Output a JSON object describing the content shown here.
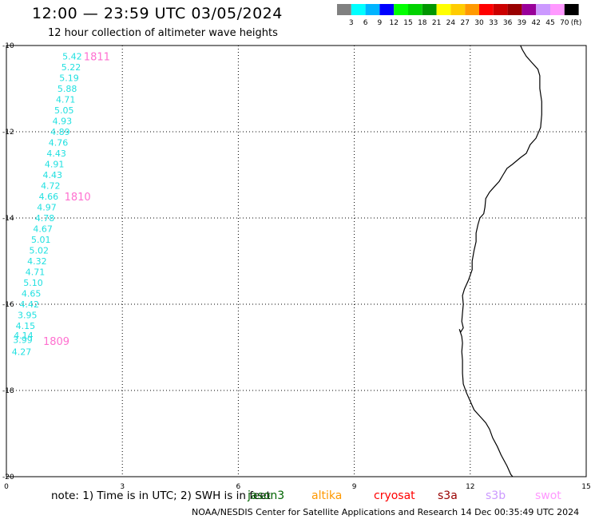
{
  "header": {
    "title": "12:00 — 23:59 UTC 03/05/2024",
    "subtitle": "12 hour collection of altimeter wave heights"
  },
  "legend": {
    "unit": "(ft)",
    "swatches": [
      {
        "label": "",
        "color": "#808080"
      },
      {
        "label": "3",
        "color": "#00ffff"
      },
      {
        "label": "6",
        "color": "#00b4ff"
      },
      {
        "label": "9",
        "color": "#0000ff"
      },
      {
        "label": "12",
        "color": "#00ff00"
      },
      {
        "label": "15",
        "color": "#00d200"
      },
      {
        "label": "18",
        "color": "#009600"
      },
      {
        "label": "21",
        "color": "#ffff00"
      },
      {
        "label": "24",
        "color": "#ffcc00"
      },
      {
        "label": "27",
        "color": "#ff9900"
      },
      {
        "label": "30",
        "color": "#ff0000"
      },
      {
        "label": "33",
        "color": "#cc0000"
      },
      {
        "label": "36",
        "color": "#990000"
      },
      {
        "label": "39",
        "color": "#990099"
      },
      {
        "label": "42",
        "color": "#cc99ff"
      },
      {
        "label": "45",
        "color": "#ff99ff"
      },
      {
        "label": "70",
        "color": "#000000"
      }
    ]
  },
  "axes": {
    "lon_labels": [
      "0",
      "3",
      "6",
      "9",
      "12",
      "15"
    ],
    "lat_labels": [
      "-10",
      "-12",
      "-14",
      "-16",
      "-18",
      "-20"
    ],
    "lon_range": [
      0,
      15
    ],
    "lat_range": [
      -20,
      -10
    ]
  },
  "wave_heights": [
    {
      "value": "5.42",
      "lon": 1.45,
      "lat": -10.25
    },
    {
      "value": "5.22",
      "lon": 1.42,
      "lat": -10.5
    },
    {
      "value": "5.19",
      "lon": 1.37,
      "lat": -10.75
    },
    {
      "value": "5.88",
      "lon": 1.32,
      "lat": -11.0
    },
    {
      "value": "4.71",
      "lon": 1.28,
      "lat": -11.25
    },
    {
      "value": "5.05",
      "lon": 1.24,
      "lat": -11.5
    },
    {
      "value": "4.93",
      "lon": 1.19,
      "lat": -11.75
    },
    {
      "value": "4.89",
      "lon": 1.14,
      "lat": -12.0
    },
    {
      "value": "4.76",
      "lon": 1.09,
      "lat": -12.25
    },
    {
      "value": "4.43",
      "lon": 1.04,
      "lat": -12.5
    },
    {
      "value": "4.91",
      "lon": 0.99,
      "lat": -12.75
    },
    {
      "value": "4.43",
      "lon": 0.94,
      "lat": -13.0
    },
    {
      "value": "4.72",
      "lon": 0.89,
      "lat": -13.25
    },
    {
      "value": "4.66",
      "lon": 0.84,
      "lat": -13.5
    },
    {
      "value": "4.97",
      "lon": 0.79,
      "lat": -13.75
    },
    {
      "value": "4.78",
      "lon": 0.74,
      "lat": -14.0
    },
    {
      "value": "4.67",
      "lon": 0.69,
      "lat": -14.25
    },
    {
      "value": "5.01",
      "lon": 0.64,
      "lat": -14.5
    },
    {
      "value": "5.02",
      "lon": 0.59,
      "lat": -14.75
    },
    {
      "value": "4.32",
      "lon": 0.54,
      "lat": -15.0
    },
    {
      "value": "4.71",
      "lon": 0.49,
      "lat": -15.25
    },
    {
      "value": "5.10",
      "lon": 0.44,
      "lat": -15.5
    },
    {
      "value": "4.65",
      "lon": 0.39,
      "lat": -15.75
    },
    {
      "value": "4.42",
      "lon": 0.34,
      "lat": -16.0
    },
    {
      "value": "3.95",
      "lon": 0.29,
      "lat": -16.25
    },
    {
      "value": "4.15",
      "lon": 0.24,
      "lat": -16.5
    },
    {
      "value": "4.14",
      "lon": 0.19,
      "lat": -16.72
    },
    {
      "value": "3.99",
      "lon": 0.17,
      "lat": -16.82
    },
    {
      "value": "4.27",
      "lon": 0.14,
      "lat": -17.1
    }
  ],
  "wave_color": "#20e0e0",
  "passes": [
    {
      "label": "1811",
      "lon": 2.0,
      "lat": -10.25
    },
    {
      "label": "1810",
      "lon": 1.5,
      "lat": -13.5
    },
    {
      "label": "1809",
      "lon": 0.95,
      "lat": -16.85
    }
  ],
  "pass_color": "#ff70d0",
  "coastline": [
    [
      13.3,
      -10.0
    ],
    [
      13.35,
      -10.1
    ],
    [
      13.45,
      -10.25
    ],
    [
      13.6,
      -10.4
    ],
    [
      13.75,
      -10.55
    ],
    [
      13.8,
      -10.7
    ],
    [
      13.8,
      -11.0
    ],
    [
      13.85,
      -11.3
    ],
    [
      13.85,
      -11.6
    ],
    [
      13.82,
      -11.9
    ],
    [
      13.7,
      -12.15
    ],
    [
      13.55,
      -12.3
    ],
    [
      13.45,
      -12.5
    ],
    [
      13.3,
      -12.6
    ],
    [
      13.1,
      -12.75
    ],
    [
      12.95,
      -12.85
    ],
    [
      12.85,
      -13.0
    ],
    [
      12.75,
      -13.15
    ],
    [
      12.6,
      -13.3
    ],
    [
      12.5,
      -13.4
    ],
    [
      12.4,
      -13.55
    ],
    [
      12.38,
      -13.75
    ],
    [
      12.35,
      -13.9
    ],
    [
      12.25,
      -14.0
    ],
    [
      12.2,
      -14.15
    ],
    [
      12.15,
      -14.35
    ],
    [
      12.15,
      -14.55
    ],
    [
      12.1,
      -14.75
    ],
    [
      12.05,
      -15.0
    ],
    [
      12.05,
      -15.2
    ],
    [
      11.95,
      -15.45
    ],
    [
      11.85,
      -15.65
    ],
    [
      11.8,
      -15.8
    ],
    [
      11.82,
      -16.0
    ],
    [
      11.8,
      -16.2
    ],
    [
      11.78,
      -16.4
    ],
    [
      11.82,
      -16.55
    ],
    [
      11.75,
      -16.65
    ],
    [
      11.72,
      -16.58
    ],
    [
      11.78,
      -16.75
    ],
    [
      11.8,
      -16.9
    ],
    [
      11.78,
      -17.1
    ],
    [
      11.8,
      -17.3
    ],
    [
      11.8,
      -17.6
    ],
    [
      11.82,
      -17.85
    ],
    [
      11.9,
      -18.05
    ],
    [
      12.0,
      -18.25
    ],
    [
      12.1,
      -18.45
    ],
    [
      12.25,
      -18.6
    ],
    [
      12.4,
      -18.75
    ],
    [
      12.5,
      -18.9
    ],
    [
      12.58,
      -19.1
    ],
    [
      12.7,
      -19.3
    ],
    [
      12.8,
      -19.5
    ],
    [
      12.95,
      -19.75
    ],
    [
      13.05,
      -19.95
    ],
    [
      13.1,
      -20.0
    ]
  ],
  "note": {
    "prefix": "note:  1) Time is in UTC; 2) SWH is in feet",
    "satellites": [
      {
        "name": "jason3",
        "color": "#006400"
      },
      {
        "name": "altika",
        "color": "#ff9900"
      },
      {
        "name": "cryosat",
        "color": "#ff0000"
      },
      {
        "name": "s3a",
        "color": "#990000"
      },
      {
        "name": "s3b",
        "color": "#cc99ff"
      },
      {
        "name": "swot",
        "color": "#ff99ff"
      }
    ]
  },
  "footer": "NOAA/NESDIS Center for Satellite Applications and Research    14 Dec 00:35:49 UTC 2024"
}
